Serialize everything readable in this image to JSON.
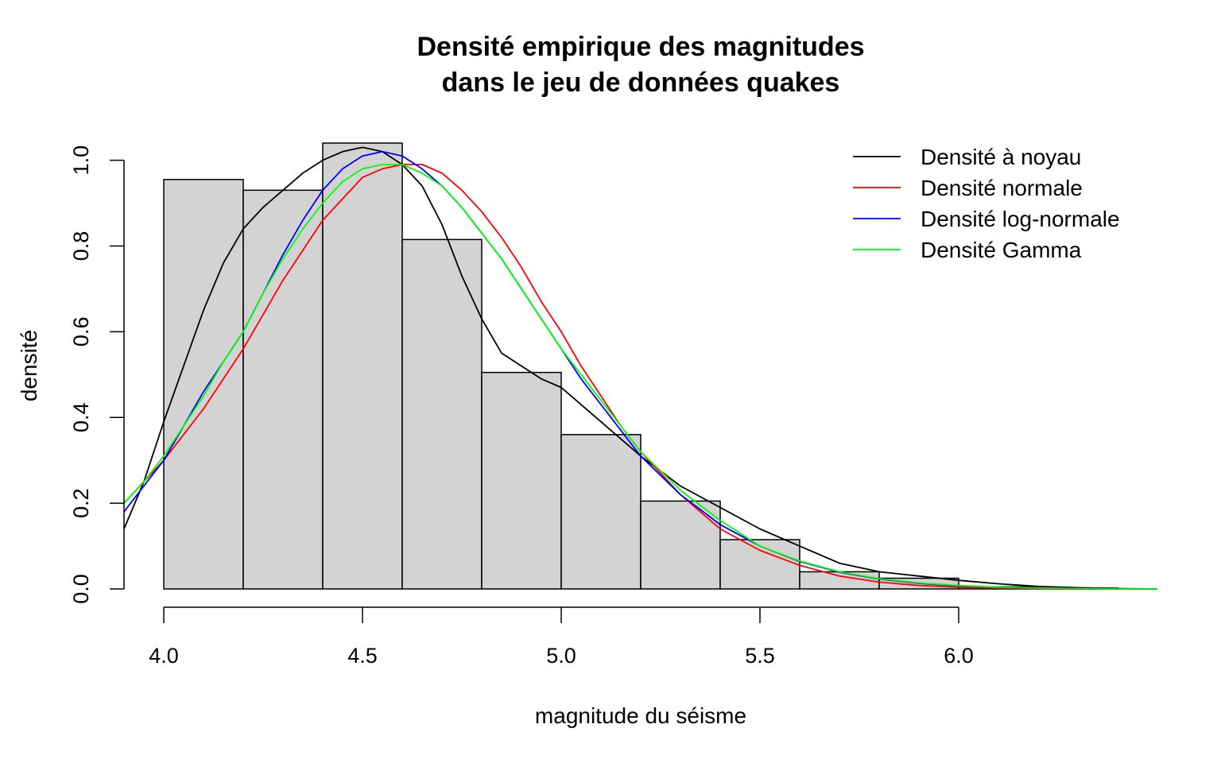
{
  "chart_data": {
    "type": "histogram",
    "title": [
      "Densité empirique des magnitudes",
      "dans le jeu de données quakes"
    ],
    "xlabel": "magnitude du séisme",
    "ylabel": "densité",
    "xlim": [
      3.9,
      6.5
    ],
    "ylim": [
      0,
      1.04
    ],
    "x_ticks": [
      4.0,
      4.5,
      5.0,
      5.5,
      6.0
    ],
    "x_tick_labels": [
      "4.0",
      "4.5",
      "5.0",
      "5.5",
      "6.0"
    ],
    "y_ticks": [
      0.0,
      0.2,
      0.4,
      0.6,
      0.8,
      1.0
    ],
    "y_tick_labels": [
      "0.0",
      "0.2",
      "0.4",
      "0.6",
      "0.8",
      "1.0"
    ],
    "grid": false,
    "bar_fill": "#d3d3d3",
    "bins": [
      {
        "start": 4.0,
        "end": 4.2,
        "density": 0.955
      },
      {
        "start": 4.2,
        "end": 4.4,
        "density": 0.93
      },
      {
        "start": 4.4,
        "end": 4.6,
        "density": 1.04
      },
      {
        "start": 4.6,
        "end": 4.8,
        "density": 0.815
      },
      {
        "start": 4.8,
        "end": 5.0,
        "density": 0.505
      },
      {
        "start": 5.0,
        "end": 5.2,
        "density": 0.36
      },
      {
        "start": 5.2,
        "end": 5.4,
        "density": 0.205
      },
      {
        "start": 5.4,
        "end": 5.6,
        "density": 0.115
      },
      {
        "start": 5.6,
        "end": 5.8,
        "density": 0.04
      },
      {
        "start": 5.8,
        "end": 6.0,
        "density": 0.025
      },
      {
        "start": 6.0,
        "end": 6.2,
        "density": 0.005
      },
      {
        "start": 6.2,
        "end": 6.4,
        "density": 0.002
      }
    ],
    "legend_position": "top-right",
    "series": [
      {
        "name": "Densité à noyau",
        "color": "#000000",
        "x": [
          3.9,
          3.95,
          4.0,
          4.05,
          4.1,
          4.15,
          4.2,
          4.25,
          4.3,
          4.35,
          4.4,
          4.45,
          4.5,
          4.55,
          4.6,
          4.65,
          4.7,
          4.75,
          4.8,
          4.85,
          4.9,
          4.95,
          5.0,
          5.1,
          5.2,
          5.3,
          5.4,
          5.5,
          5.6,
          5.7,
          5.8,
          5.9,
          6.0,
          6.1,
          6.2,
          6.3,
          6.4,
          6.5
        ],
        "y": [
          0.14,
          0.25,
          0.39,
          0.52,
          0.65,
          0.76,
          0.84,
          0.89,
          0.93,
          0.97,
          1.0,
          1.02,
          1.03,
          1.02,
          0.99,
          0.94,
          0.85,
          0.73,
          0.63,
          0.55,
          0.52,
          0.49,
          0.47,
          0.39,
          0.31,
          0.24,
          0.19,
          0.14,
          0.1,
          0.06,
          0.04,
          0.03,
          0.02,
          0.012,
          0.006,
          0.003,
          0.001,
          0.0
        ]
      },
      {
        "name": "Densité normale",
        "color": "#ff0000",
        "x": [
          3.9,
          3.95,
          4.0,
          4.05,
          4.1,
          4.15,
          4.2,
          4.25,
          4.3,
          4.35,
          4.4,
          4.45,
          4.5,
          4.55,
          4.6,
          4.65,
          4.7,
          4.75,
          4.8,
          4.85,
          4.9,
          4.95,
          5.0,
          5.05,
          5.1,
          5.15,
          5.2,
          5.3,
          5.4,
          5.5,
          5.6,
          5.7,
          5.8,
          5.9,
          6.0,
          6.1,
          6.2,
          6.3,
          6.4,
          6.5
        ],
        "y": [
          0.2,
          0.25,
          0.3,
          0.36,
          0.42,
          0.49,
          0.56,
          0.64,
          0.72,
          0.79,
          0.86,
          0.91,
          0.96,
          0.98,
          0.99,
          0.99,
          0.97,
          0.93,
          0.88,
          0.82,
          0.75,
          0.67,
          0.6,
          0.52,
          0.45,
          0.38,
          0.32,
          0.22,
          0.14,
          0.09,
          0.055,
          0.03,
          0.016,
          0.008,
          0.004,
          0.002,
          0.001,
          0.0,
          0.0,
          0.0
        ]
      },
      {
        "name": "Densité log-normale",
        "color": "#0000ff",
        "x": [
          3.9,
          3.95,
          4.0,
          4.05,
          4.1,
          4.15,
          4.2,
          4.25,
          4.3,
          4.35,
          4.4,
          4.45,
          4.5,
          4.55,
          4.6,
          4.65,
          4.7,
          4.75,
          4.8,
          4.85,
          4.9,
          4.95,
          5.0,
          5.05,
          5.1,
          5.15,
          5.2,
          5.3,
          5.4,
          5.5,
          5.6,
          5.7,
          5.8,
          5.9,
          6.0,
          6.1,
          6.2,
          6.3,
          6.4,
          6.5
        ],
        "y": [
          0.18,
          0.24,
          0.3,
          0.38,
          0.46,
          0.53,
          0.6,
          0.69,
          0.78,
          0.86,
          0.93,
          0.98,
          1.01,
          1.02,
          1.01,
          0.98,
          0.94,
          0.89,
          0.83,
          0.77,
          0.7,
          0.63,
          0.56,
          0.49,
          0.43,
          0.37,
          0.31,
          0.22,
          0.15,
          0.1,
          0.064,
          0.039,
          0.023,
          0.013,
          0.007,
          0.004,
          0.002,
          0.001,
          0.0,
          0.0
        ]
      },
      {
        "name": "Densité Gamma",
        "color": "#00ff00",
        "x": [
          3.9,
          3.95,
          4.0,
          4.05,
          4.1,
          4.15,
          4.2,
          4.25,
          4.3,
          4.35,
          4.4,
          4.45,
          4.5,
          4.55,
          4.6,
          4.65,
          4.7,
          4.75,
          4.8,
          4.85,
          4.9,
          4.95,
          5.0,
          5.05,
          5.1,
          5.15,
          5.2,
          5.3,
          5.4,
          5.5,
          5.6,
          5.7,
          5.8,
          5.9,
          6.0,
          6.1,
          6.2,
          6.3,
          6.4,
          6.5
        ],
        "y": [
          0.2,
          0.25,
          0.31,
          0.38,
          0.45,
          0.53,
          0.6,
          0.69,
          0.77,
          0.84,
          0.9,
          0.95,
          0.98,
          0.99,
          0.99,
          0.97,
          0.94,
          0.89,
          0.83,
          0.77,
          0.7,
          0.63,
          0.56,
          0.5,
          0.44,
          0.38,
          0.32,
          0.23,
          0.16,
          0.1,
          0.065,
          0.04,
          0.024,
          0.014,
          0.008,
          0.004,
          0.002,
          0.001,
          0.0,
          0.0
        ]
      }
    ]
  }
}
